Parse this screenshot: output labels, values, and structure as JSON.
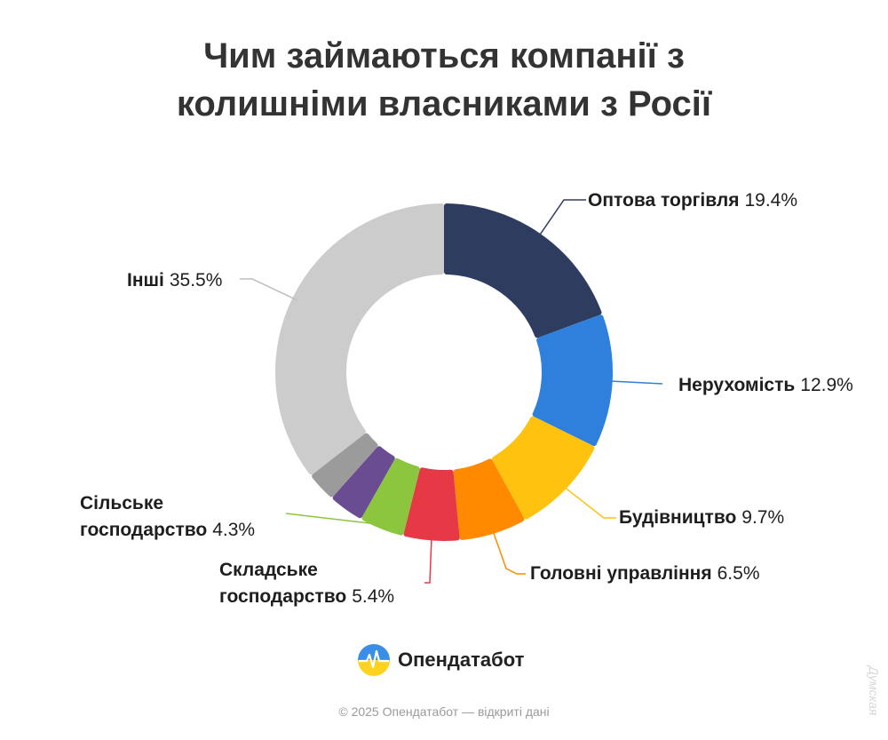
{
  "title_lines": [
    "Чим займаються компанії з",
    "колишніми власниками з Росії"
  ],
  "chart_data": {
    "type": "pie",
    "variant": "donut",
    "title": "Чим займаються компанії з колишніми власниками з Росії",
    "slices": [
      {
        "label": "Оптова торгівля",
        "value": 19.4,
        "display": "19.4%",
        "color": "#2e3d5f",
        "labeled": true
      },
      {
        "label": "Нерухомість",
        "value": 12.9,
        "display": "12.9%",
        "color": "#2f80dd",
        "labeled": true
      },
      {
        "label": "Будівництво",
        "value": 9.7,
        "display": "9.7%",
        "color": "#ffc20e",
        "labeled": true
      },
      {
        "label": "Головні управління",
        "value": 6.5,
        "display": "6.5%",
        "color": "#ff8a00",
        "labeled": true
      },
      {
        "label": "Складське господарство",
        "value": 5.4,
        "display": "5.4%",
        "color": "#e63946",
        "labeled": true
      },
      {
        "label": "Сільське господарство",
        "value": 4.3,
        "display": "4.3%",
        "color": "#8cc63f",
        "labeled": true
      },
      {
        "label": "",
        "value": 3.4,
        "display": "",
        "color": "#6a4c93",
        "labeled": false
      },
      {
        "label": "",
        "value": 2.9,
        "display": "",
        "color": "#9b9b9b",
        "labeled": false
      },
      {
        "label": "Інші",
        "value": 35.5,
        "display": "35.5%",
        "color": "#cccccc",
        "labeled": true
      }
    ]
  },
  "labels": {
    "wholesale": {
      "name": "Оптова торгівля",
      "value": "19.4%"
    },
    "realestate": {
      "name": "Нерухомість",
      "value": "12.9%"
    },
    "construction": {
      "name": "Будівництво",
      "value": "9.7%"
    },
    "headoffices": {
      "name": "Головні управління",
      "value": "6.5%"
    },
    "warehousing_line1": "Складське",
    "warehousing_line2": "господарство",
    "warehousing_value": "5.4%",
    "agriculture_line1": "Сільське",
    "agriculture_line2": "господарство",
    "agriculture_value": "4.3%",
    "other": {
      "name": "Інші",
      "value": "35.5%"
    }
  },
  "brand": {
    "name": "Опендатабот",
    "icon": "opendatabot-logo-icon"
  },
  "copyright": "© 2025 Опендатабот — відкриті дані",
  "watermark": "Думская"
}
